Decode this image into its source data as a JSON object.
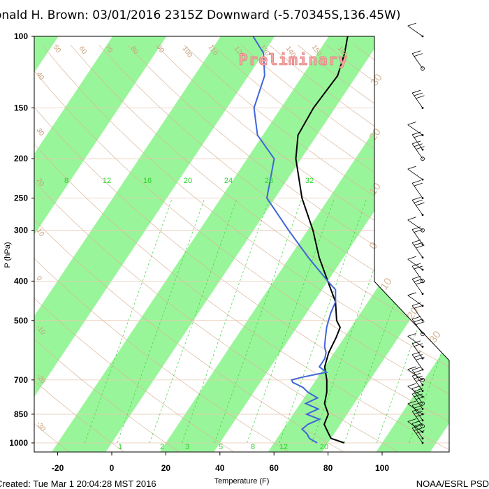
{
  "title": "onald H. Brown: 03/01/2016 2315Z Downward (-5.70345S,136.45W)",
  "footer": {
    "created": "Created: Tue Mar  1 20:04:28 MST 2016",
    "credit": "NOAA/ESRL PSD"
  },
  "watermark": "Preliminary",
  "colors": {
    "temperature": "#000000",
    "dewpoint": "#3f66d8",
    "band": "#99f599",
    "isobar": "#e8c9b2",
    "dry_adiabat": "#d9b79c",
    "mixing_ratio": "#3dd23d"
  },
  "chart_data": {
    "type": "line",
    "plot": "skew-T log-P",
    "xlabel": "Temperature (F)",
    "ylabel": "P (hPa)",
    "xlim": [
      -28,
      112
    ],
    "ylim": [
      1000,
      100
    ],
    "x_ticks": [
      "-20",
      "0",
      "20",
      "40",
      "60",
      "80",
      "100"
    ],
    "pressure_ticks": [
      "100",
      "150",
      "200",
      "250",
      "300",
      "400",
      "500",
      "700",
      "850",
      "1000"
    ],
    "mixing_ratio_labels_top": [
      "8",
      "12",
      "16",
      "20",
      "24",
      "28",
      "32"
    ],
    "mixing_ratio_labels_bottom": [
      "1",
      "2",
      "3",
      "5",
      "8",
      "12",
      "20"
    ],
    "isotherm_labels": [
      "50",
      "60",
      "70",
      "80",
      "90",
      "100",
      "110",
      "120",
      "130",
      "140",
      "150",
      "160"
    ],
    "adiabat_labels_left": [
      "40",
      "30",
      "20",
      "10",
      "0",
      "-10",
      "-20",
      "-30"
    ],
    "theta_labels_right": [
      "30",
      "20",
      "10",
      "0",
      "10",
      "20",
      "30"
    ],
    "series": [
      {
        "name": "Temperature",
        "points": [
          [
            1000,
            86
          ],
          [
            975,
            80
          ],
          [
            950,
            78
          ],
          [
            925,
            76
          ],
          [
            900,
            74
          ],
          [
            850,
            73
          ],
          [
            800,
            69
          ],
          [
            750,
            67
          ],
          [
            700,
            64
          ],
          [
            650,
            60
          ],
          [
            600,
            58
          ],
          [
            550,
            57
          ],
          [
            520,
            56
          ],
          [
            500,
            53
          ],
          [
            450,
            48
          ],
          [
            400,
            40
          ],
          [
            350,
            31
          ],
          [
            300,
            22
          ],
          [
            250,
            10
          ],
          [
            200,
            -2
          ],
          [
            175,
            -7
          ],
          [
            150,
            -8
          ],
          [
            125,
            -7
          ],
          [
            110,
            -10
          ],
          [
            100,
            -13
          ]
        ]
      },
      {
        "name": "Dewpoint",
        "points": [
          [
            1000,
            76
          ],
          [
            975,
            72
          ],
          [
            950,
            70
          ],
          [
            925,
            67
          ],
          [
            900,
            68
          ],
          [
            875,
            71
          ],
          [
            850,
            65
          ],
          [
            825,
            68
          ],
          [
            800,
            62
          ],
          [
            775,
            65
          ],
          [
            750,
            60
          ],
          [
            730,
            57
          ],
          [
            710,
            52
          ],
          [
            700,
            51
          ],
          [
            690,
            54
          ],
          [
            670,
            62
          ],
          [
            650,
            58
          ],
          [
            620,
            58
          ],
          [
            600,
            57
          ],
          [
            580,
            55
          ],
          [
            550,
            53
          ],
          [
            520,
            51
          ],
          [
            500,
            50
          ],
          [
            480,
            49
          ],
          [
            450,
            48
          ],
          [
            420,
            45
          ],
          [
            400,
            40
          ],
          [
            350,
            27
          ],
          [
            300,
            13
          ],
          [
            250,
            -3
          ],
          [
            200,
            -10
          ],
          [
            175,
            -22
          ],
          [
            150,
            -30
          ],
          [
            125,
            -34
          ],
          [
            110,
            -40
          ],
          [
            100,
            -48
          ]
        ]
      }
    ],
    "wind_barbs_pressure": [
      100,
      120,
      150,
      175,
      190,
      200,
      225,
      250,
      275,
      300,
      325,
      350,
      375,
      400,
      430,
      460,
      500,
      540,
      580,
      620,
      660,
      700,
      720,
      745,
      770,
      800,
      825,
      850,
      880,
      910,
      940,
      975,
      1000
    ],
    "grid": true
  }
}
